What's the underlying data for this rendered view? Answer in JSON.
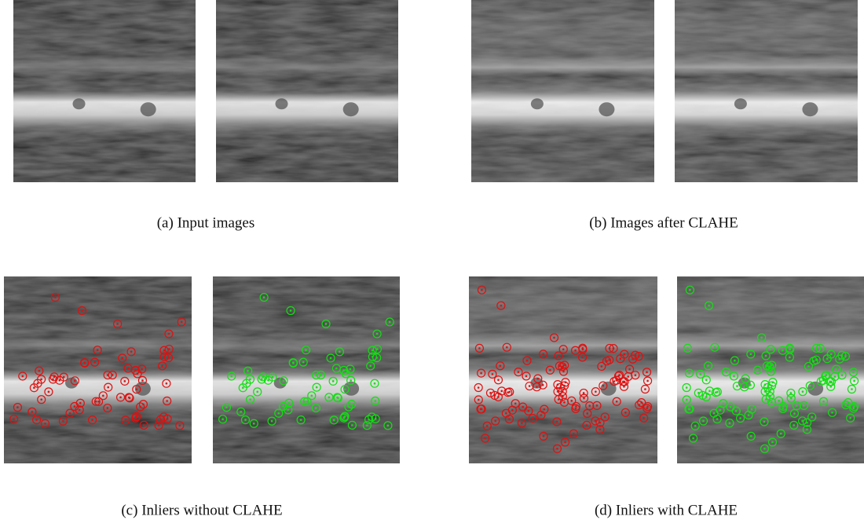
{
  "subfigures": [
    {
      "caption": "(a) Input images"
    },
    {
      "caption": "(b) Images after CLAHE"
    },
    {
      "caption": "(c) Inliers without CLAHE"
    },
    {
      "caption": "(d) Inliers with CLAHE"
    }
  ]
}
